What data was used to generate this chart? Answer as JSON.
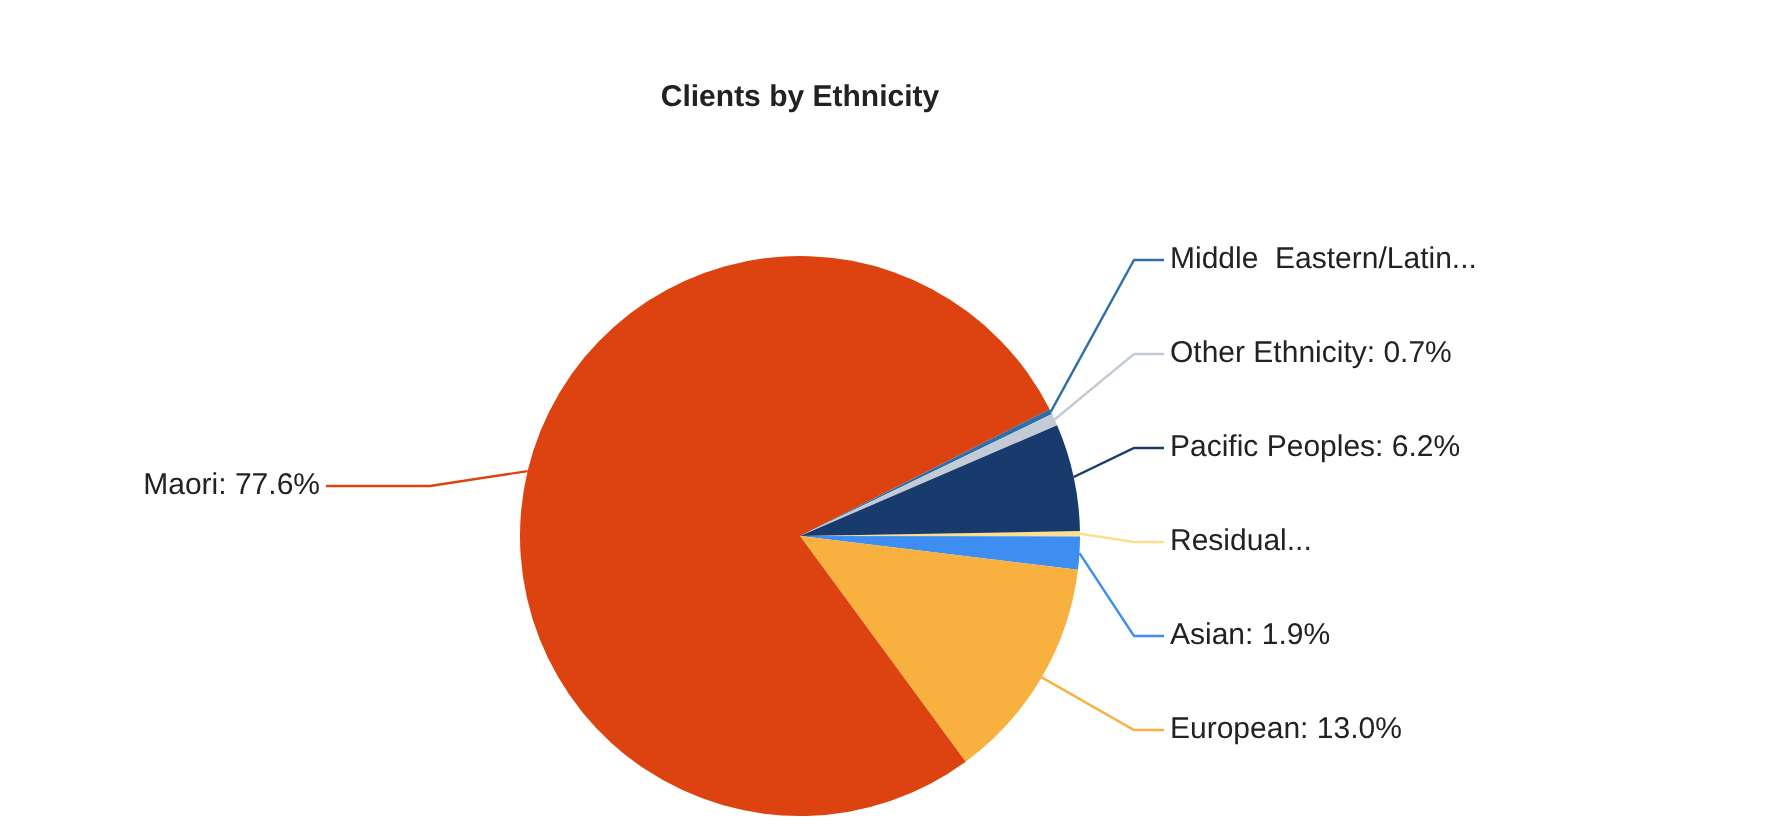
{
  "chart_data": {
    "type": "pie",
    "title": "Clients by Ethnicity",
    "categories": [
      "Residual...",
      "Asian",
      "European",
      "Maori",
      "Middle  Eastern/Latin...",
      "Other Ethnicity",
      "Pacific Peoples"
    ],
    "values": [
      0.3,
      1.9,
      13.0,
      77.6,
      0.3,
      0.7,
      6.2
    ],
    "value_labels": [
      null,
      "1.9%",
      "13.0%",
      "77.6%",
      null,
      "0.7%",
      "6.2%"
    ],
    "colors": [
      "#ffe08a",
      "#3d8ef0",
      "#f8b03e",
      "#dc4310",
      "#2f6ea6",
      "#c3ccd6",
      "#183a6c"
    ],
    "legend": false
  }
}
